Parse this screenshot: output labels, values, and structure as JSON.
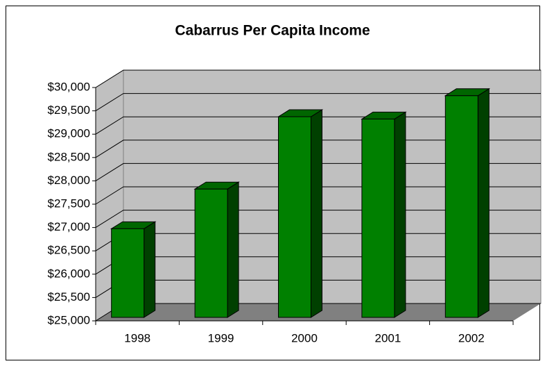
{
  "chart_data": {
    "type": "bar3d",
    "title": "Cabarrus Per Capita Income",
    "categories": [
      "1998",
      "1999",
      "2000",
      "2001",
      "2002"
    ],
    "values": [
      26900,
      27750,
      29300,
      29250,
      29750
    ],
    "color": "#008000",
    "ylim": [
      25000,
      30000
    ],
    "yticks": [
      {
        "value": 25000,
        "label": "$25,000"
      },
      {
        "value": 25500,
        "label": "$25,500"
      },
      {
        "value": 26000,
        "label": "$26,000"
      },
      {
        "value": 26500,
        "label": "$26,500"
      },
      {
        "value": 27000,
        "label": "$27,000"
      },
      {
        "value": 27500,
        "label": "$27,500"
      },
      {
        "value": 28000,
        "label": "$28,000"
      },
      {
        "value": 28500,
        "label": "$28,500"
      },
      {
        "value": 29000,
        "label": "$29,000"
      },
      {
        "value": 29500,
        "label": "$29,500"
      },
      {
        "value": 30000,
        "label": "$30,000"
      }
    ],
    "grid": true
  }
}
